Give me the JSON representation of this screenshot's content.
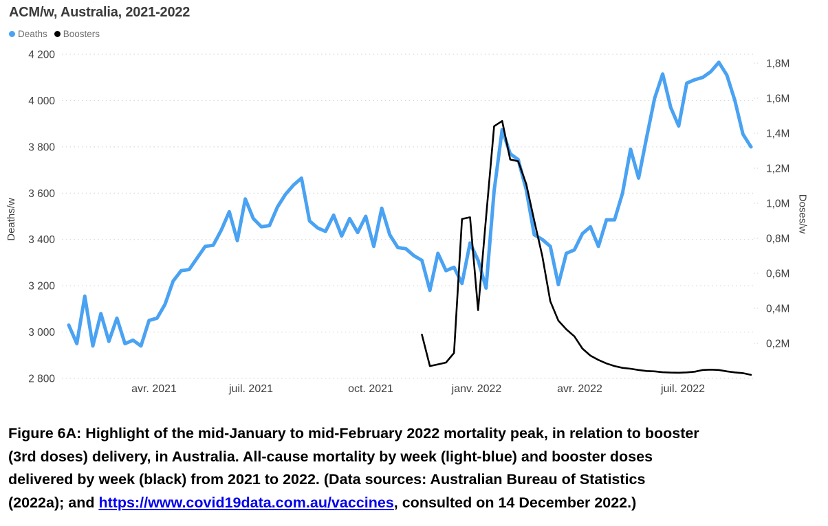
{
  "header": {
    "title": "ACM/w, Australia, 2021-2022"
  },
  "legend": [
    {
      "label": "Deaths",
      "color": "#4AA2F2"
    },
    {
      "label": "Boosters",
      "color": "#000000"
    }
  ],
  "chart_data": {
    "type": "line",
    "title": "ACM/w, Australia, 2021-2022",
    "grid": "horizontal dotted",
    "legend_position": "top-left",
    "x_axis": {
      "unit": "week",
      "range_note": "mid-January 2021 to early-September 2022, weekly points",
      "tick_labels": [
        "avr. 2021",
        "juil. 2021",
        "oct. 2021",
        "janv. 2022",
        "avr. 2022",
        "juil. 2022"
      ]
    },
    "left_axis": {
      "label": "Deaths/w",
      "min": 2800,
      "max": 4200,
      "ticks": [
        {
          "label": "4 200",
          "value": 4200
        },
        {
          "label": "4 000",
          "value": 4000
        },
        {
          "label": "3 800",
          "value": 3800
        },
        {
          "label": "3 600",
          "value": 3600
        },
        {
          "label": "3 400",
          "value": 3400
        },
        {
          "label": "3 200",
          "value": 3200
        },
        {
          "label": "3 000",
          "value": 3000
        },
        {
          "label": "2 800",
          "value": 2800
        }
      ]
    },
    "right_axis": {
      "label": "Doses/w",
      "min": 0,
      "max": 1.8,
      "unit": "millions of doses per week",
      "ticks": [
        {
          "label": "1,8M",
          "value": 1.8
        },
        {
          "label": "1,6M",
          "value": 1.6
        },
        {
          "label": "1,4M",
          "value": 1.4
        },
        {
          "label": "1,2M",
          "value": 1.2
        },
        {
          "label": "1,0M",
          "value": 1.0
        },
        {
          "label": "0,8M",
          "value": 0.8
        },
        {
          "label": "0,6M",
          "value": 0.6
        },
        {
          "label": "0,4M",
          "value": 0.4
        },
        {
          "label": "0,2M",
          "value": 0.2
        }
      ]
    },
    "series": [
      {
        "name": "Deaths",
        "color": "#4AA2F2",
        "axis": "left",
        "start_week_index": 0,
        "start_note": "first point mid-January 2021",
        "values": [
          3030,
          2950,
          3155,
          2940,
          3080,
          2960,
          3060,
          2950,
          2965,
          2940,
          3050,
          3060,
          3120,
          3220,
          3265,
          3270,
          3320,
          3370,
          3375,
          3440,
          3520,
          3395,
          3575,
          3490,
          3455,
          3460,
          3540,
          3595,
          3635,
          3665,
          3480,
          3450,
          3435,
          3505,
          3415,
          3490,
          3430,
          3500,
          3370,
          3535,
          3420,
          3365,
          3360,
          3330,
          3310,
          3180,
          3340,
          3265,
          3280,
          3210,
          3385,
          3310,
          3190,
          3610,
          3875,
          3770,
          3745,
          3615,
          3420,
          3400,
          3370,
          3205,
          3340,
          3355,
          3425,
          3455,
          3370,
          3485,
          3485,
          3600,
          3790,
          3665,
          3840,
          4010,
          4115,
          3970,
          3890,
          4075,
          4090,
          4100,
          4125,
          4165,
          4110,
          4000,
          3855,
          3800
        ]
      },
      {
        "name": "Boosters",
        "color": "#000000",
        "axis": "right",
        "start_week_index": 44,
        "start_note": "first point mid-November 2021",
        "values": [
          0.25,
          0.07,
          0.08,
          0.09,
          0.145,
          0.91,
          0.92,
          0.39,
          0.92,
          1.44,
          1.47,
          1.25,
          1.24,
          1.11,
          0.9,
          0.7,
          0.44,
          0.33,
          0.28,
          0.24,
          0.17,
          0.13,
          0.105,
          0.085,
          0.07,
          0.06,
          0.055,
          0.048,
          0.042,
          0.04,
          0.035,
          0.033,
          0.032,
          0.034,
          0.038,
          0.048,
          0.05,
          0.048,
          0.04,
          0.034,
          0.03,
          0.02
        ]
      }
    ]
  },
  "caption": {
    "lines": [
      {
        "segments": [
          {
            "text": "Figure 6A: Highlight of the mid-January to mid-February 2022 mortality peak, in relation to booster"
          }
        ]
      },
      {
        "segments": [
          {
            "text": "(3rd doses) delivery, in Australia. All-cause mortality by week (light-blue) and booster doses"
          }
        ]
      },
      {
        "segments": [
          {
            "text": "delivered by week (black) from 2021 to 2022. (Data sources: Australian Bureau of Statistics"
          }
        ]
      },
      {
        "segments": [
          {
            "text": "(2022a); and "
          },
          {
            "text": "https://www.covid19data.com.au/vaccines",
            "link": true
          },
          {
            "text": ", consulted on 14 December 2022.)"
          }
        ]
      }
    ]
  },
  "colors": {
    "deaths_line": "#4AA2F2",
    "boosters_line": "#000000",
    "grid": "#d2d2d2",
    "tick_text": "#414141",
    "legend_text": "#6d6d6d",
    "link": "#0000ee"
  }
}
